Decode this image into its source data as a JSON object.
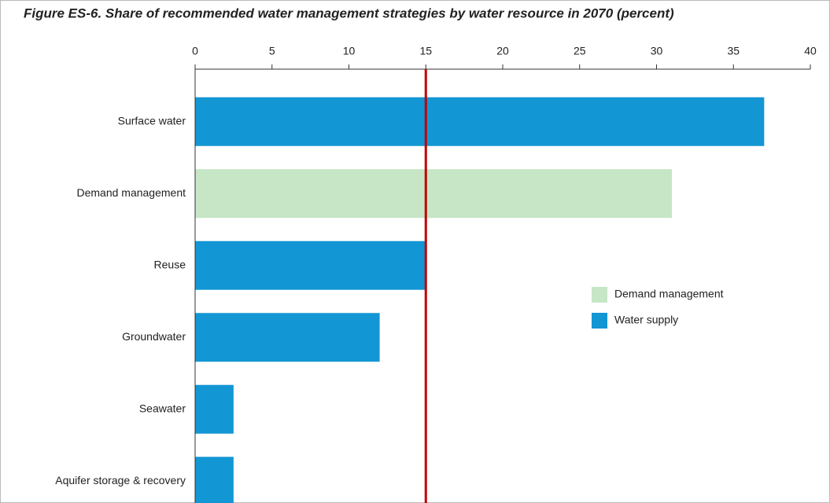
{
  "chart_data": {
    "type": "bar",
    "orientation": "horizontal",
    "title": "Figure ES-6. Share of recommended water management strategies by water resource in 2070 (percent)",
    "categories": [
      "Surface water",
      "Demand management",
      "Reuse",
      "Groundwater",
      "Seawater",
      "Aquifer storage & recovery"
    ],
    "series": [
      {
        "name": "Demand management",
        "color": "#c6e6c6",
        "values": [
          null,
          31,
          null,
          null,
          null,
          null
        ]
      },
      {
        "name": "Water supply",
        "color": "#1396d4",
        "values": [
          37,
          null,
          15,
          12,
          2.5,
          2.5
        ]
      }
    ],
    "xlim": [
      0,
      40
    ],
    "xticks": [
      0,
      5,
      10,
      15,
      20,
      25,
      30,
      35,
      40
    ],
    "reference_line": {
      "value": 15,
      "color": "#c00000"
    },
    "grid": false,
    "legend": "right"
  }
}
